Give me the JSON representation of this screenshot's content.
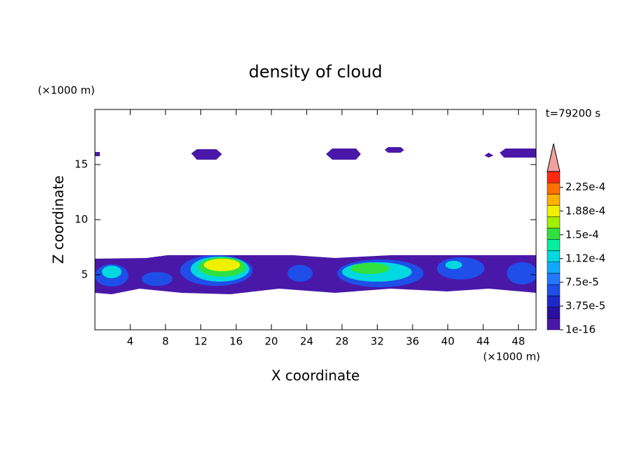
{
  "chart_data": {
    "type": "contour",
    "title": "density of cloud",
    "x_label": "X coordinate",
    "y_label": "Z coordinate",
    "x_unit": "(×1000 m)",
    "y_unit": "(×1000 m)",
    "time_label": "t=79200 s",
    "xlim": [
      0,
      50
    ],
    "ylim": [
      0,
      20
    ],
    "xticks": [
      4,
      8,
      12,
      16,
      20,
      24,
      28,
      32,
      36,
      40,
      44,
      48
    ],
    "yticks": [
      5,
      10,
      15
    ],
    "colorbar": {
      "clim": [
        1e-16,
        0.00025
      ],
      "ticks": [
        1e-16,
        {
          "value": 3.75e-05,
          "label": "3.75e-5"
        },
        {
          "value": 7.5e-05,
          "label": "7.5e-5"
        },
        {
          "value": 0.0001125,
          "label": "1.12e-4"
        },
        {
          "value": 0.00015,
          "label": "1.5e-4"
        },
        {
          "value": 0.0001875,
          "label": "1.88e-4"
        },
        {
          "value": 0.000225,
          "label": "2.25e-4"
        }
      ],
      "colors": [
        "#4a18a8",
        "#2a10a0",
        "#1c28c8",
        "#1f4ee8",
        "#2278ff",
        "#10a8ff",
        "#00d8e0",
        "#00f0a0",
        "#30e040",
        "#a0f000",
        "#f0f000",
        "#ffb000",
        "#ff7000",
        "#ff2810"
      ],
      "extend_color": "#f4a0a0"
    }
  }
}
